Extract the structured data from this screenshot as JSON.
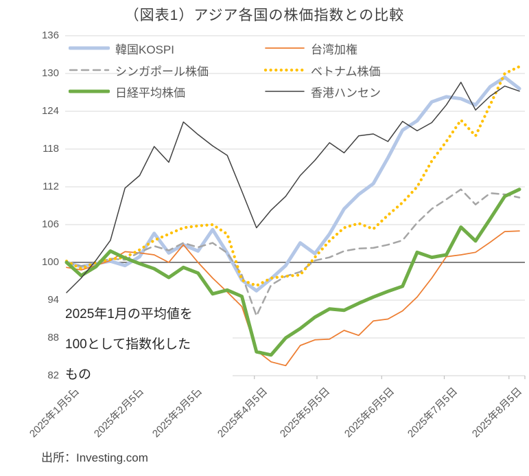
{
  "header": {
    "title": "（図表1）アジア各国の株価指数との比較"
  },
  "annotation": {
    "text": "2025年1月の平均値を100として指数化したもの",
    "lines": [
      "2025年1月の平均値を",
      "100として指数化した",
      "もの"
    ]
  },
  "source": {
    "label": "出所：Investing.com"
  },
  "chart_data": {
    "type": "line",
    "title": "（図表1）アジア各国の株価指数との比較",
    "xlabel": "",
    "ylabel": "",
    "ylim": [
      82,
      136
    ],
    "yticks": [
      136,
      130,
      124,
      118,
      112,
      106,
      100,
      94,
      88,
      82
    ],
    "grid": "horizontal",
    "baseline_value": 100,
    "legend_position": "top-left, 2 columns",
    "x_unit": "weekly points from 2025-01-05",
    "month_ticks": {
      "labels": [
        "2025年1月5日",
        "2025年2月5日",
        "2025年3月5日",
        "2025年4月5日",
        "2025年5月5日",
        "2025年6月5日",
        "2025年7月5日",
        "2025年8月5日"
      ],
      "days_from_start": [
        0,
        31,
        59,
        90,
        120,
        151,
        181,
        212
      ],
      "total_span_days": 217
    },
    "series": [
      {
        "name": "韓国KOSPI",
        "color": "#B4C7E7",
        "style": "solid",
        "width": 5,
        "values": [
          100.0,
          99.3,
          99.8,
          100.2,
          99.5,
          100.9,
          104.6,
          101.5,
          102.8,
          101.8,
          105.2,
          101.5,
          97.2,
          95.5,
          97.4,
          99.5,
          103.1,
          101.4,
          104.5,
          108.5,
          110.8,
          112.5,
          116.6,
          121.0,
          122.5,
          125.5,
          126.3,
          126.0,
          125.0,
          127.9,
          129.4,
          127.6
        ]
      },
      {
        "name": "台湾加権",
        "color": "#ED7D31",
        "style": "solid",
        "width": 1.75,
        "values": [
          99.2,
          98.8,
          99.5,
          100.3,
          101.7,
          101.5,
          101.2,
          100.0,
          102.8,
          100.0,
          97.5,
          95.3,
          93.0,
          86.0,
          84.2,
          83.6,
          86.8,
          87.7,
          87.8,
          89.2,
          88.4,
          90.7,
          91.0,
          92.3,
          94.5,
          97.5,
          100.9,
          101.2,
          101.6,
          103.2,
          104.9,
          105.0
        ]
      },
      {
        "name": "シンガポール株価",
        "color": "#A5A5A5",
        "style": "dashed",
        "width": 2.5,
        "values": [
          100.0,
          99.4,
          99.8,
          100.6,
          100.4,
          101.6,
          102.6,
          101.9,
          103.1,
          102.4,
          103.1,
          101.5,
          98.0,
          91.5,
          96.4,
          97.8,
          98.5,
          100.3,
          100.8,
          101.8,
          102.2,
          102.3,
          102.8,
          103.5,
          106.3,
          108.5,
          110.0,
          111.6,
          109.2,
          111.0,
          110.8,
          110.3
        ]
      },
      {
        "name": "ベトナム株価",
        "color": "#FFC000",
        "style": "dotted",
        "width": 3.75,
        "values": [
          100.2,
          99.0,
          100.0,
          100.5,
          100.8,
          102.0,
          103.5,
          104.5,
          105.5,
          105.8,
          106.0,
          104.5,
          97.2,
          96.3,
          97.5,
          97.8,
          98.0,
          100.8,
          103.4,
          105.5,
          106.2,
          105.3,
          107.5,
          109.5,
          112.0,
          116.1,
          119.2,
          122.6,
          120.1,
          125.0,
          130.0,
          131.1
        ]
      },
      {
        "name": "日経平均株価",
        "color": "#70AD47",
        "style": "solid",
        "width": 5,
        "values": [
          100.0,
          97.9,
          99.3,
          101.8,
          100.7,
          99.8,
          99.0,
          97.6,
          99.2,
          98.3,
          95.0,
          95.6,
          94.6,
          85.8,
          85.3,
          88.0,
          89.5,
          91.3,
          92.6,
          92.4,
          93.5,
          94.5,
          95.4,
          96.2,
          101.6,
          100.8,
          101.2,
          105.6,
          103.4,
          106.9,
          110.5,
          111.6
        ]
      },
      {
        "name": "香港ハンセン",
        "color": "#404040",
        "style": "solid",
        "width": 1.5,
        "values": [
          95.2,
          97.5,
          100.3,
          103.5,
          111.8,
          113.8,
          118.4,
          115.9,
          122.3,
          120.3,
          118.5,
          117.0,
          111.3,
          105.5,
          108.3,
          110.5,
          113.8,
          116.2,
          119.0,
          117.4,
          120.1,
          120.4,
          119.2,
          122.4,
          120.9,
          122.2,
          125.0,
          128.6,
          124.2,
          126.4,
          128.0,
          127.2
        ]
      }
    ],
    "colors": {
      "gridline": "#D9D9D9",
      "baseline": "#595959",
      "axis": "#BFBFBF",
      "tick_label": "#595959",
      "title": "#404040"
    }
  }
}
